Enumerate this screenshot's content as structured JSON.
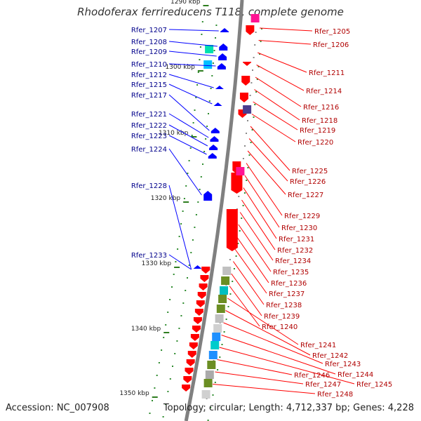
{
  "title": "Rhodoferax ferrireducens T118, complete genome",
  "accession": "Accession: NC_007908",
  "summary": "Topology: circular; Length: 4,712,337 bp; Genes: 4,228",
  "colors": {
    "forward": "#0000ff",
    "reverse": "#ff0000",
    "backbone": "#808080",
    "tick": "#2e7d1f"
  },
  "scale": {
    "ticks": [
      "1290 kbp",
      "1300 kbp",
      "1310 kbp",
      "1320 kbp",
      "1330 kbp",
      "1340 kbp",
      "1350 kbp"
    ]
  },
  "forward_labels": [
    "Rfer_1207",
    "Rfer_1208",
    "Rfer_1209",
    "Rfer_1210",
    "Rfer_1212",
    "Rfer_1215",
    "Rfer_1217",
    "Rfer_1221",
    "Rfer_1222",
    "Rfer_1223",
    "Rfer_1224",
    "Rfer_1228",
    "Rfer_1233"
  ],
  "reverse_labels": [
    "Rfer_1205",
    "Rfer_1206",
    "Rfer_1211",
    "Rfer_1214",
    "Rfer_1216",
    "Rfer_1218",
    "Rfer_1219",
    "Rfer_1220",
    "Rfer_1225",
    "Rfer_1226",
    "Rfer_1227",
    "Rfer_1229",
    "Rfer_1230",
    "Rfer_1231",
    "Rfer_1232",
    "Rfer_1234",
    "Rfer_1235",
    "Rfer_1236",
    "Rfer_1237",
    "Rfer_1238",
    "Rfer_1239",
    "Rfer_1240",
    "Rfer_1241",
    "Rfer_1242",
    "Rfer_1243",
    "Rfer_1244",
    "Rfer_1245",
    "Rfer_1246",
    "Rfer_1247",
    "Rfer_1248"
  ]
}
